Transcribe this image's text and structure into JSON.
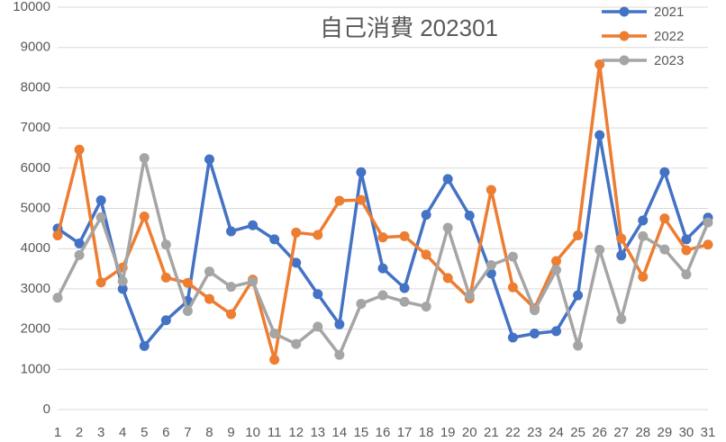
{
  "chart_data": {
    "type": "line",
    "title": "自己消費 202301",
    "categories": [
      "1",
      "2",
      "3",
      "4",
      "5",
      "6",
      "7",
      "8",
      "9",
      "10",
      "11",
      "12",
      "13",
      "14",
      "15",
      "16",
      "17",
      "18",
      "19",
      "20",
      "21",
      "22",
      "23",
      "24",
      "25",
      "26",
      "27",
      "28",
      "29",
      "30",
      "31"
    ],
    "series": [
      {
        "name": "2021",
        "color": "#4472c4",
        "values": [
          4500,
          4130,
          5200,
          3000,
          1580,
          2220,
          2700,
          6220,
          4430,
          4580,
          4230,
          3650,
          2870,
          2120,
          5900,
          3510,
          3020,
          4840,
          5730,
          4820,
          3380,
          1790,
          1890,
          1950,
          2840,
          6820,
          3830,
          4700,
          5900,
          4230,
          4770
        ]
      },
      {
        "name": "2022",
        "color": "#ed7d31",
        "values": [
          4330,
          6460,
          3160,
          3530,
          4800,
          3280,
          3150,
          2750,
          2370,
          3230,
          1240,
          4400,
          4340,
          5190,
          5210,
          4280,
          4310,
          3850,
          3270,
          2760,
          5460,
          3040,
          2520,
          3690,
          4330,
          8580,
          4250,
          3300,
          4750,
          3960,
          4100
        ]
      },
      {
        "name": "2023",
        "color": "#a5a5a5",
        "values": [
          2780,
          3840,
          4780,
          3190,
          6250,
          4100,
          2450,
          3430,
          3050,
          3180,
          1890,
          1630,
          2060,
          1360,
          2630,
          2840,
          2680,
          2560,
          4520,
          2830,
          3590,
          3800,
          2470,
          3470,
          1590,
          3970,
          2250,
          4310,
          3980,
          3360,
          4650
        ]
      }
    ],
    "ylim": [
      0,
      10000
    ],
    "yticks": [
      0,
      1000,
      2000,
      3000,
      4000,
      5000,
      6000,
      7000,
      8000,
      9000,
      10000
    ],
    "grid": true,
    "legend": "top-right"
  }
}
